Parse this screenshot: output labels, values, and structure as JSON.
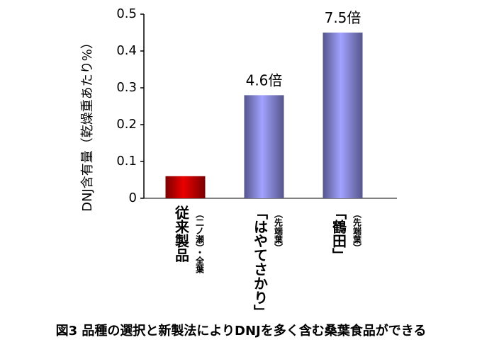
{
  "chart_data": {
    "type": "bar",
    "y_label": "DNJ含有量（乾燥重あたり%）",
    "caption": "図3  品種の選択と新製法によりDNJを多く含む桑葉食品ができる",
    "categories": [
      "従来製品",
      "「はやてさかり」",
      "「鶴田」"
    ],
    "category_notes": [
      "（二ノ瀬）・全葉",
      "（先端葉）",
      "（先端葉）"
    ],
    "values": [
      0.06,
      0.28,
      0.45
    ],
    "ratio_labels": [
      null,
      "4.6倍",
      "7.5倍"
    ],
    "colors": [
      "#e00000",
      "#9a9aff",
      "#9a9aff"
    ],
    "ylim": [
      0,
      0.5
    ],
    "yticks": [
      0,
      0.1,
      0.2,
      0.3,
      0.4,
      0.5
    ]
  }
}
